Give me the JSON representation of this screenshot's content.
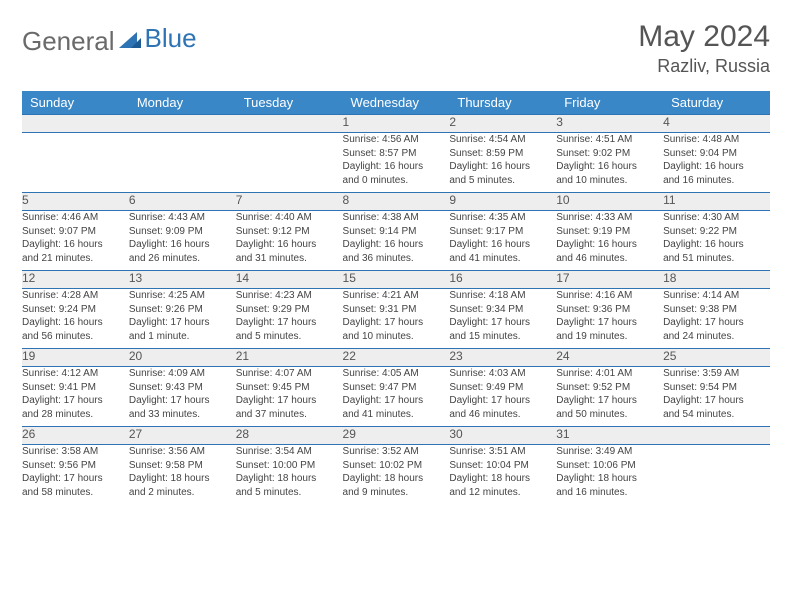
{
  "logo": {
    "part1": "General",
    "part2": "Blue"
  },
  "title": "May 2024",
  "location": "Razliv, Russia",
  "colors": {
    "header_bg": "#3a87c7",
    "row_sep": "#2e74b5",
    "daynum_bg": "#eeeeee"
  },
  "weekdays": [
    "Sunday",
    "Monday",
    "Tuesday",
    "Wednesday",
    "Thursday",
    "Friday",
    "Saturday"
  ],
  "weeks": [
    [
      null,
      null,
      null,
      {
        "n": "1",
        "sr": "Sunrise: 4:56 AM",
        "ss": "Sunset: 8:57 PM",
        "dl1": "Daylight: 16 hours",
        "dl2": "and 0 minutes."
      },
      {
        "n": "2",
        "sr": "Sunrise: 4:54 AM",
        "ss": "Sunset: 8:59 PM",
        "dl1": "Daylight: 16 hours",
        "dl2": "and 5 minutes."
      },
      {
        "n": "3",
        "sr": "Sunrise: 4:51 AM",
        "ss": "Sunset: 9:02 PM",
        "dl1": "Daylight: 16 hours",
        "dl2": "and 10 minutes."
      },
      {
        "n": "4",
        "sr": "Sunrise: 4:48 AM",
        "ss": "Sunset: 9:04 PM",
        "dl1": "Daylight: 16 hours",
        "dl2": "and 16 minutes."
      }
    ],
    [
      {
        "n": "5",
        "sr": "Sunrise: 4:46 AM",
        "ss": "Sunset: 9:07 PM",
        "dl1": "Daylight: 16 hours",
        "dl2": "and 21 minutes."
      },
      {
        "n": "6",
        "sr": "Sunrise: 4:43 AM",
        "ss": "Sunset: 9:09 PM",
        "dl1": "Daylight: 16 hours",
        "dl2": "and 26 minutes."
      },
      {
        "n": "7",
        "sr": "Sunrise: 4:40 AM",
        "ss": "Sunset: 9:12 PM",
        "dl1": "Daylight: 16 hours",
        "dl2": "and 31 minutes."
      },
      {
        "n": "8",
        "sr": "Sunrise: 4:38 AM",
        "ss": "Sunset: 9:14 PM",
        "dl1": "Daylight: 16 hours",
        "dl2": "and 36 minutes."
      },
      {
        "n": "9",
        "sr": "Sunrise: 4:35 AM",
        "ss": "Sunset: 9:17 PM",
        "dl1": "Daylight: 16 hours",
        "dl2": "and 41 minutes."
      },
      {
        "n": "10",
        "sr": "Sunrise: 4:33 AM",
        "ss": "Sunset: 9:19 PM",
        "dl1": "Daylight: 16 hours",
        "dl2": "and 46 minutes."
      },
      {
        "n": "11",
        "sr": "Sunrise: 4:30 AM",
        "ss": "Sunset: 9:22 PM",
        "dl1": "Daylight: 16 hours",
        "dl2": "and 51 minutes."
      }
    ],
    [
      {
        "n": "12",
        "sr": "Sunrise: 4:28 AM",
        "ss": "Sunset: 9:24 PM",
        "dl1": "Daylight: 16 hours",
        "dl2": "and 56 minutes."
      },
      {
        "n": "13",
        "sr": "Sunrise: 4:25 AM",
        "ss": "Sunset: 9:26 PM",
        "dl1": "Daylight: 17 hours",
        "dl2": "and 1 minute."
      },
      {
        "n": "14",
        "sr": "Sunrise: 4:23 AM",
        "ss": "Sunset: 9:29 PM",
        "dl1": "Daylight: 17 hours",
        "dl2": "and 5 minutes."
      },
      {
        "n": "15",
        "sr": "Sunrise: 4:21 AM",
        "ss": "Sunset: 9:31 PM",
        "dl1": "Daylight: 17 hours",
        "dl2": "and 10 minutes."
      },
      {
        "n": "16",
        "sr": "Sunrise: 4:18 AM",
        "ss": "Sunset: 9:34 PM",
        "dl1": "Daylight: 17 hours",
        "dl2": "and 15 minutes."
      },
      {
        "n": "17",
        "sr": "Sunrise: 4:16 AM",
        "ss": "Sunset: 9:36 PM",
        "dl1": "Daylight: 17 hours",
        "dl2": "and 19 minutes."
      },
      {
        "n": "18",
        "sr": "Sunrise: 4:14 AM",
        "ss": "Sunset: 9:38 PM",
        "dl1": "Daylight: 17 hours",
        "dl2": "and 24 minutes."
      }
    ],
    [
      {
        "n": "19",
        "sr": "Sunrise: 4:12 AM",
        "ss": "Sunset: 9:41 PM",
        "dl1": "Daylight: 17 hours",
        "dl2": "and 28 minutes."
      },
      {
        "n": "20",
        "sr": "Sunrise: 4:09 AM",
        "ss": "Sunset: 9:43 PM",
        "dl1": "Daylight: 17 hours",
        "dl2": "and 33 minutes."
      },
      {
        "n": "21",
        "sr": "Sunrise: 4:07 AM",
        "ss": "Sunset: 9:45 PM",
        "dl1": "Daylight: 17 hours",
        "dl2": "and 37 minutes."
      },
      {
        "n": "22",
        "sr": "Sunrise: 4:05 AM",
        "ss": "Sunset: 9:47 PM",
        "dl1": "Daylight: 17 hours",
        "dl2": "and 41 minutes."
      },
      {
        "n": "23",
        "sr": "Sunrise: 4:03 AM",
        "ss": "Sunset: 9:49 PM",
        "dl1": "Daylight: 17 hours",
        "dl2": "and 46 minutes."
      },
      {
        "n": "24",
        "sr": "Sunrise: 4:01 AM",
        "ss": "Sunset: 9:52 PM",
        "dl1": "Daylight: 17 hours",
        "dl2": "and 50 minutes."
      },
      {
        "n": "25",
        "sr": "Sunrise: 3:59 AM",
        "ss": "Sunset: 9:54 PM",
        "dl1": "Daylight: 17 hours",
        "dl2": "and 54 minutes."
      }
    ],
    [
      {
        "n": "26",
        "sr": "Sunrise: 3:58 AM",
        "ss": "Sunset: 9:56 PM",
        "dl1": "Daylight: 17 hours",
        "dl2": "and 58 minutes."
      },
      {
        "n": "27",
        "sr": "Sunrise: 3:56 AM",
        "ss": "Sunset: 9:58 PM",
        "dl1": "Daylight: 18 hours",
        "dl2": "and 2 minutes."
      },
      {
        "n": "28",
        "sr": "Sunrise: 3:54 AM",
        "ss": "Sunset: 10:00 PM",
        "dl1": "Daylight: 18 hours",
        "dl2": "and 5 minutes."
      },
      {
        "n": "29",
        "sr": "Sunrise: 3:52 AM",
        "ss": "Sunset: 10:02 PM",
        "dl1": "Daylight: 18 hours",
        "dl2": "and 9 minutes."
      },
      {
        "n": "30",
        "sr": "Sunrise: 3:51 AM",
        "ss": "Sunset: 10:04 PM",
        "dl1": "Daylight: 18 hours",
        "dl2": "and 12 minutes."
      },
      {
        "n": "31",
        "sr": "Sunrise: 3:49 AM",
        "ss": "Sunset: 10:06 PM",
        "dl1": "Daylight: 18 hours",
        "dl2": "and 16 minutes."
      },
      null
    ]
  ]
}
